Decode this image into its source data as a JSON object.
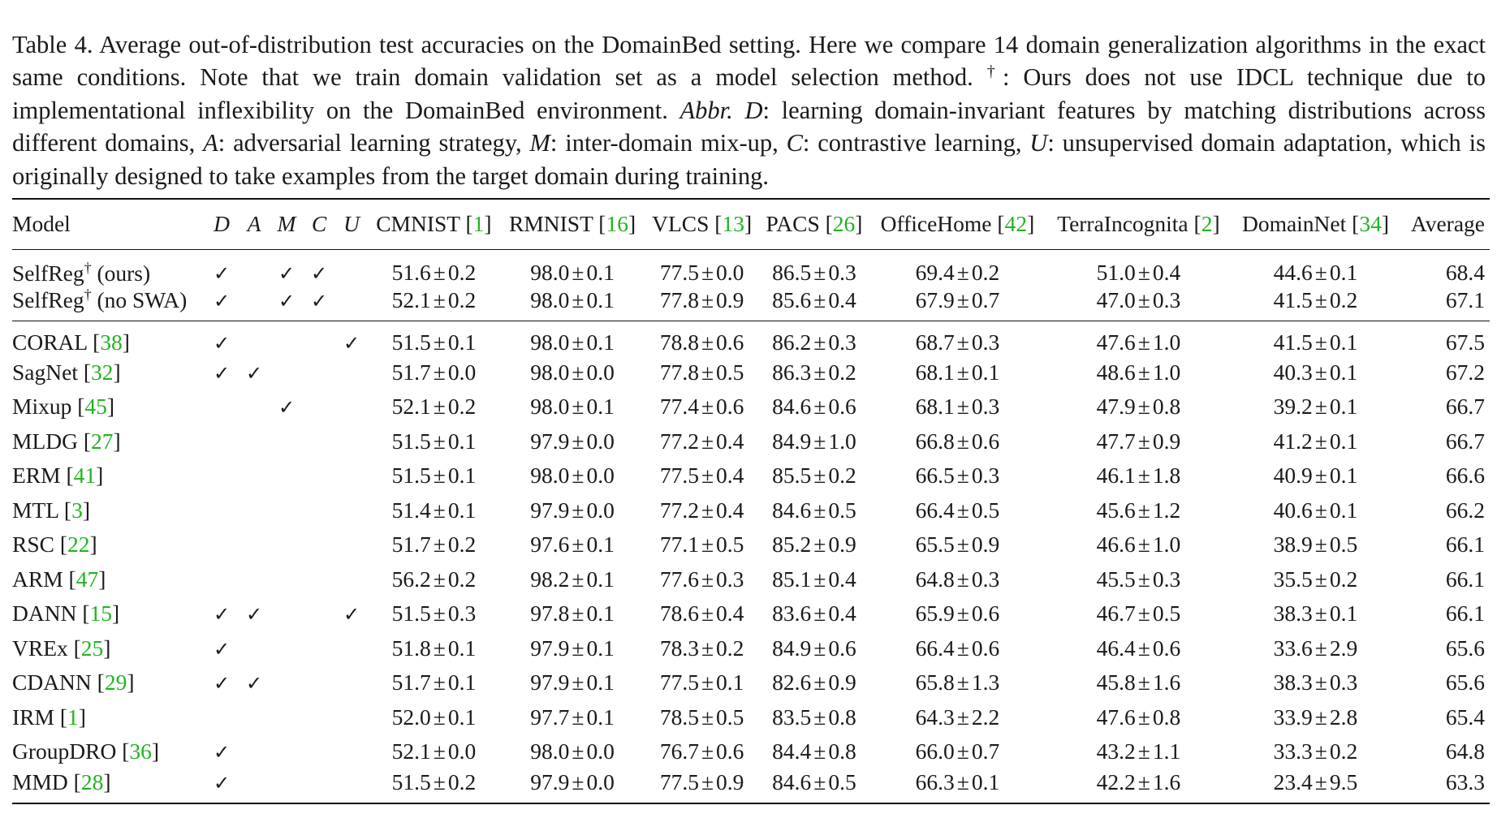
{
  "caption": {
    "label": "Table 4.",
    "part1": " Average out-of-distribution test accuracies on the DomainBed setting. Here we compare 14 domain generalization algorithms in the exact same conditions. Note that we train domain validation set as a model selection method. ",
    "dagger": "†",
    "part2": ": Ours does not use IDCL technique due to implementational inflexibility on the DomainBed environment. ",
    "abbr": "Abbr.",
    "d_sym": "D",
    "d_text": ": learning domain-invariant features by matching distributions across different domains, ",
    "a_sym": "A",
    "a_text": ": adversarial learning strategy, ",
    "m_sym": "M",
    "m_text": ": inter-domain mix-up, ",
    "c_sym": "C",
    "c_text": ": contrastive learning, ",
    "u_sym": "U",
    "u_text": ": unsupervised domain adaptation, which is originally designed to take examples from the target domain during training."
  },
  "header": {
    "model": "Model",
    "flags": [
      "D",
      "A",
      "M",
      "C",
      "U"
    ],
    "datasets": [
      {
        "name": "CMNIST",
        "cite": "1"
      },
      {
        "name": "RMNIST",
        "cite": "16"
      },
      {
        "name": "VLCS",
        "cite": "13"
      },
      {
        "name": "PACS",
        "cite": "26"
      },
      {
        "name": "OfficeHome",
        "cite": "42"
      },
      {
        "name": "TerraIncognita",
        "cite": "2"
      },
      {
        "name": "DomainNet",
        "cite": "34"
      }
    ],
    "average": "Average"
  },
  "check_symbol": "✓",
  "pm_symbol": "±",
  "ours_rows": [
    {
      "name": "SelfReg",
      "sup": "†",
      "suffix": " (ours)",
      "flags": [
        true,
        false,
        true,
        true,
        false
      ],
      "values": [
        [
          "51.6",
          "0.2"
        ],
        [
          "98.0",
          "0.1"
        ],
        [
          "77.5",
          "0.0"
        ],
        [
          "86.5",
          "0.3"
        ],
        [
          "69.4",
          "0.2"
        ],
        [
          "51.0",
          "0.4"
        ],
        [
          "44.6",
          "0.1"
        ]
      ],
      "avg": "68.4"
    },
    {
      "name": "SelfReg",
      "sup": "†",
      "suffix": " (no SWA)",
      "flags": [
        true,
        false,
        true,
        true,
        false
      ],
      "values": [
        [
          "52.1",
          "0.2"
        ],
        [
          "98.0",
          "0.1"
        ],
        [
          "77.8",
          "0.9"
        ],
        [
          "85.6",
          "0.4"
        ],
        [
          "67.9",
          "0.7"
        ],
        [
          "47.0",
          "0.3"
        ],
        [
          "41.5",
          "0.2"
        ]
      ],
      "avg": "67.1"
    }
  ],
  "baseline_rows": [
    {
      "name": "CORAL",
      "cite": "38",
      "flags": [
        true,
        false,
        false,
        false,
        true
      ],
      "values": [
        [
          "51.5",
          "0.1"
        ],
        [
          "98.0",
          "0.1"
        ],
        [
          "78.8",
          "0.6"
        ],
        [
          "86.2",
          "0.3"
        ],
        [
          "68.7",
          "0.3"
        ],
        [
          "47.6",
          "1.0"
        ],
        [
          "41.5",
          "0.1"
        ]
      ],
      "avg": "67.5"
    },
    {
      "name": "SagNet",
      "cite": "32",
      "flags": [
        true,
        true,
        false,
        false,
        false
      ],
      "values": [
        [
          "51.7",
          "0.0"
        ],
        [
          "98.0",
          "0.0"
        ],
        [
          "77.8",
          "0.5"
        ],
        [
          "86.3",
          "0.2"
        ],
        [
          "68.1",
          "0.1"
        ],
        [
          "48.6",
          "1.0"
        ],
        [
          "40.3",
          "0.1"
        ]
      ],
      "avg": "67.2"
    },
    {
      "name": "Mixup",
      "cite": "45",
      "flags": [
        false,
        false,
        true,
        false,
        false
      ],
      "values": [
        [
          "52.1",
          "0.2"
        ],
        [
          "98.0",
          "0.1"
        ],
        [
          "77.4",
          "0.6"
        ],
        [
          "84.6",
          "0.6"
        ],
        [
          "68.1",
          "0.3"
        ],
        [
          "47.9",
          "0.8"
        ],
        [
          "39.2",
          "0.1"
        ]
      ],
      "avg": "66.7"
    },
    {
      "name": "MLDG",
      "cite": "27",
      "flags": [
        false,
        false,
        false,
        false,
        false
      ],
      "values": [
        [
          "51.5",
          "0.1"
        ],
        [
          "97.9",
          "0.0"
        ],
        [
          "77.2",
          "0.4"
        ],
        [
          "84.9",
          "1.0"
        ],
        [
          "66.8",
          "0.6"
        ],
        [
          "47.7",
          "0.9"
        ],
        [
          "41.2",
          "0.1"
        ]
      ],
      "avg": "66.7"
    },
    {
      "name": "ERM",
      "cite": "41",
      "flags": [
        false,
        false,
        false,
        false,
        false
      ],
      "values": [
        [
          "51.5",
          "0.1"
        ],
        [
          "98.0",
          "0.0"
        ],
        [
          "77.5",
          "0.4"
        ],
        [
          "85.5",
          "0.2"
        ],
        [
          "66.5",
          "0.3"
        ],
        [
          "46.1",
          "1.8"
        ],
        [
          "40.9",
          "0.1"
        ]
      ],
      "avg": "66.6"
    },
    {
      "name": "MTL",
      "cite": "3",
      "flags": [
        false,
        false,
        false,
        false,
        false
      ],
      "values": [
        [
          "51.4",
          "0.1"
        ],
        [
          "97.9",
          "0.0"
        ],
        [
          "77.2",
          "0.4"
        ],
        [
          "84.6",
          "0.5"
        ],
        [
          "66.4",
          "0.5"
        ],
        [
          "45.6",
          "1.2"
        ],
        [
          "40.6",
          "0.1"
        ]
      ],
      "avg": "66.2"
    },
    {
      "name": "RSC",
      "cite": "22",
      "flags": [
        false,
        false,
        false,
        false,
        false
      ],
      "values": [
        [
          "51.7",
          "0.2"
        ],
        [
          "97.6",
          "0.1"
        ],
        [
          "77.1",
          "0.5"
        ],
        [
          "85.2",
          "0.9"
        ],
        [
          "65.5",
          "0.9"
        ],
        [
          "46.6",
          "1.0"
        ],
        [
          "38.9",
          "0.5"
        ]
      ],
      "avg": "66.1"
    },
    {
      "name": "ARM",
      "cite": "47",
      "flags": [
        false,
        false,
        false,
        false,
        false
      ],
      "values": [
        [
          "56.2",
          "0.2"
        ],
        [
          "98.2",
          "0.1"
        ],
        [
          "77.6",
          "0.3"
        ],
        [
          "85.1",
          "0.4"
        ],
        [
          "64.8",
          "0.3"
        ],
        [
          "45.5",
          "0.3"
        ],
        [
          "35.5",
          "0.2"
        ]
      ],
      "avg": "66.1"
    },
    {
      "name": "DANN",
      "cite": "15",
      "flags": [
        true,
        true,
        false,
        false,
        true
      ],
      "values": [
        [
          "51.5",
          "0.3"
        ],
        [
          "97.8",
          "0.1"
        ],
        [
          "78.6",
          "0.4"
        ],
        [
          "83.6",
          "0.4"
        ],
        [
          "65.9",
          "0.6"
        ],
        [
          "46.7",
          "0.5"
        ],
        [
          "38.3",
          "0.1"
        ]
      ],
      "avg": "66.1"
    },
    {
      "name": "VREx",
      "cite": "25",
      "flags": [
        true,
        false,
        false,
        false,
        false
      ],
      "values": [
        [
          "51.8",
          "0.1"
        ],
        [
          "97.9",
          "0.1"
        ],
        [
          "78.3",
          "0.2"
        ],
        [
          "84.9",
          "0.6"
        ],
        [
          "66.4",
          "0.6"
        ],
        [
          "46.4",
          "0.6"
        ],
        [
          "33.6",
          "2.9"
        ]
      ],
      "avg": "65.6"
    },
    {
      "name": "CDANN",
      "cite": "29",
      "flags": [
        true,
        true,
        false,
        false,
        false
      ],
      "values": [
        [
          "51.7",
          "0.1"
        ],
        [
          "97.9",
          "0.1"
        ],
        [
          "77.5",
          "0.1"
        ],
        [
          "82.6",
          "0.9"
        ],
        [
          "65.8",
          "1.3"
        ],
        [
          "45.8",
          "1.6"
        ],
        [
          "38.3",
          "0.3"
        ]
      ],
      "avg": "65.6"
    },
    {
      "name": "IRM",
      "cite": "1",
      "flags": [
        false,
        false,
        false,
        false,
        false
      ],
      "values": [
        [
          "52.0",
          "0.1"
        ],
        [
          "97.7",
          "0.1"
        ],
        [
          "78.5",
          "0.5"
        ],
        [
          "83.5",
          "0.8"
        ],
        [
          "64.3",
          "2.2"
        ],
        [
          "47.6",
          "0.8"
        ],
        [
          "33.9",
          "2.8"
        ]
      ],
      "avg": "65.4"
    },
    {
      "name": "GroupDRO",
      "cite": "36",
      "flags": [
        true,
        false,
        false,
        false,
        false
      ],
      "values": [
        [
          "52.1",
          "0.0"
        ],
        [
          "98.0",
          "0.0"
        ],
        [
          "76.7",
          "0.6"
        ],
        [
          "84.4",
          "0.8"
        ],
        [
          "66.0",
          "0.7"
        ],
        [
          "43.2",
          "1.1"
        ],
        [
          "33.3",
          "0.2"
        ]
      ],
      "avg": "64.8"
    },
    {
      "name": "MMD",
      "cite": "28",
      "flags": [
        true,
        false,
        false,
        false,
        false
      ],
      "values": [
        [
          "51.5",
          "0.2"
        ],
        [
          "97.9",
          "0.0"
        ],
        [
          "77.5",
          "0.9"
        ],
        [
          "84.6",
          "0.5"
        ],
        [
          "66.3",
          "0.1"
        ],
        [
          "42.2",
          "1.6"
        ],
        [
          "23.4",
          "9.5"
        ]
      ],
      "avg": "63.3"
    }
  ],
  "colors": {
    "citation": "#22b322",
    "text": "#1a1a1a",
    "rule": "#111111"
  }
}
